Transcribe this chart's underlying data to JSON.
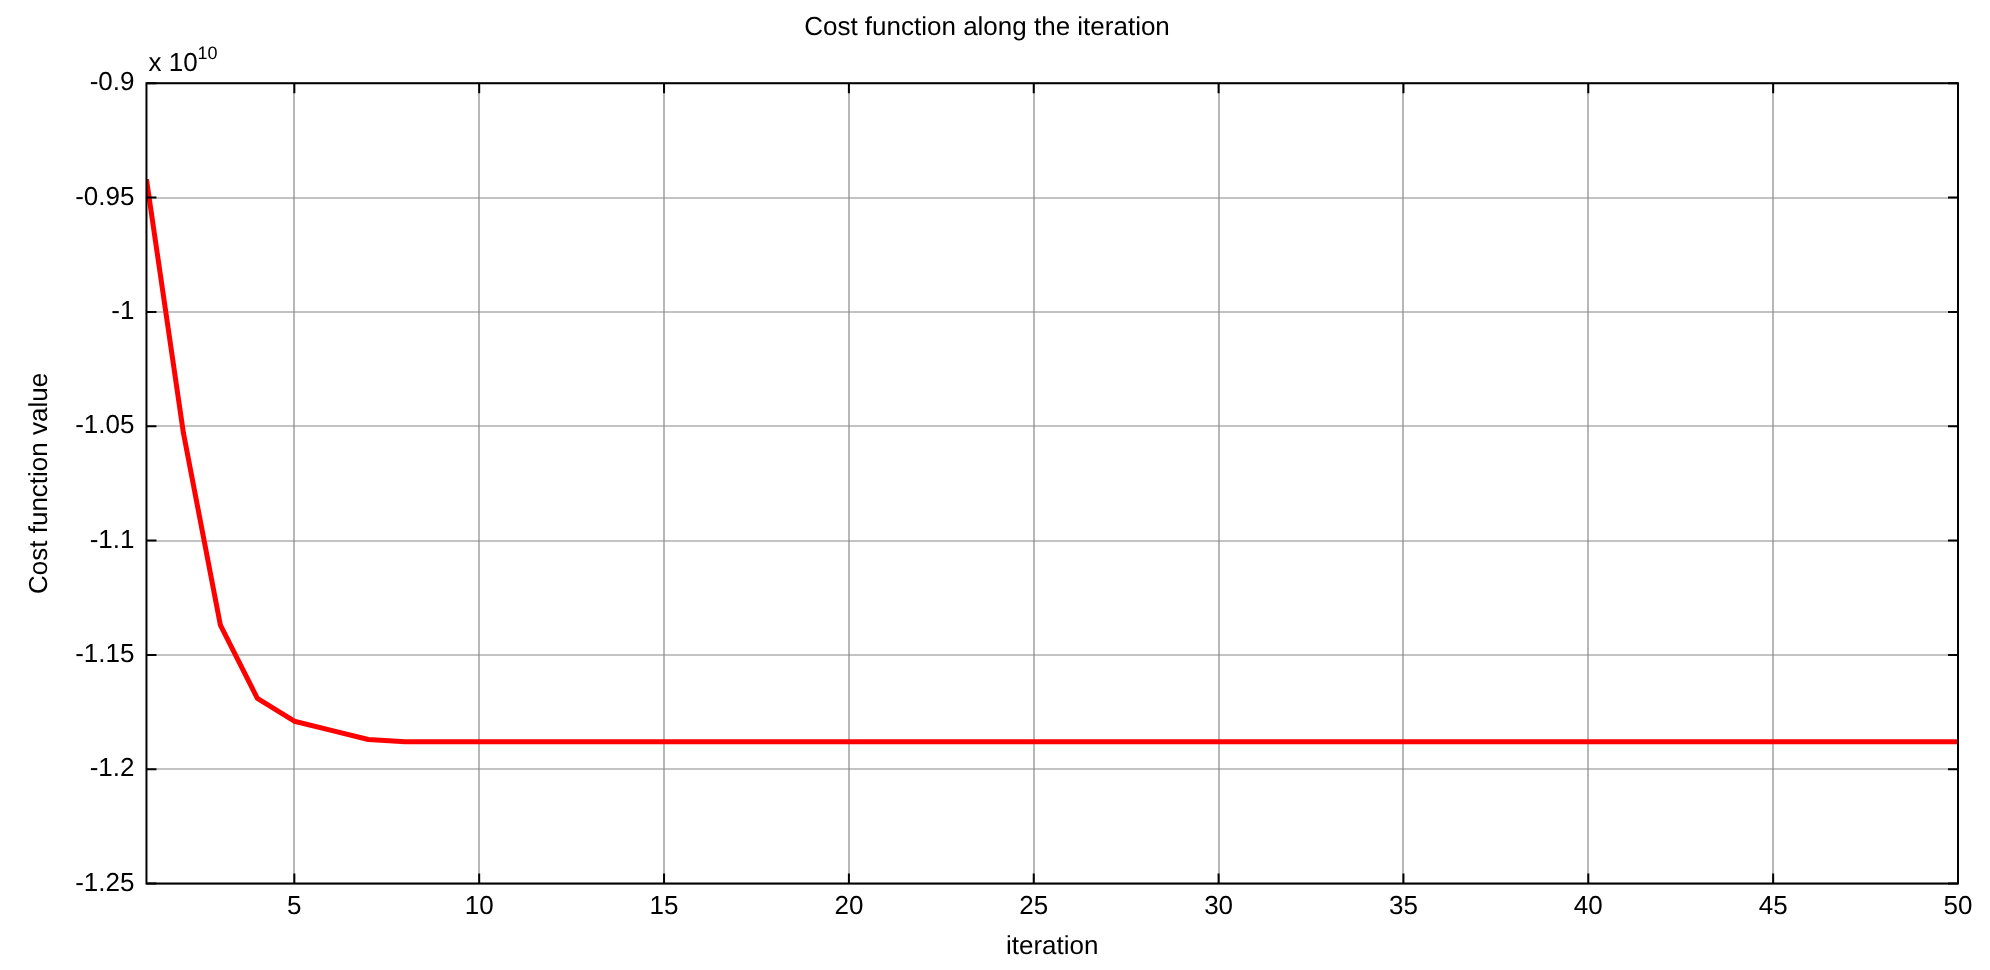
{
  "chart_data": {
    "type": "line",
    "title": "Cost function along the iteration",
    "xlabel": "iteration",
    "ylabel": "Cost function value",
    "annotations": [
      "x 10$^{10}$"
    ],
    "x": [
      1,
      2,
      3,
      4,
      5,
      6,
      7,
      8,
      9,
      10,
      15,
      20,
      25,
      30,
      35,
      40,
      45,
      50
    ],
    "series": [
      {
        "color": "#ff0000",
        "values": [
          -0.942,
          -1.053,
          -1.137,
          -1.169,
          -1.179,
          -1.183,
          -1.187,
          -1.188,
          -1.188,
          -1.188,
          -1.188,
          -1.188,
          -1.188,
          -1.188,
          -1.188,
          -1.188,
          -1.188,
          -1.188
        ]
      }
    ],
    "xlim": [
      1,
      50
    ],
    "xticks": [
      5,
      10,
      15,
      20,
      25,
      30,
      35,
      40,
      45,
      50
    ],
    "ylim": [
      -1.25,
      -0.9
    ],
    "yticks": [
      -1.25,
      -1.2,
      -1.15,
      -1.1,
      -1.05,
      -1,
      -0.95,
      -0.9
    ],
    "grid": true,
    "legend": false,
    "marker": "none",
    "line_style": "solid"
  }
}
